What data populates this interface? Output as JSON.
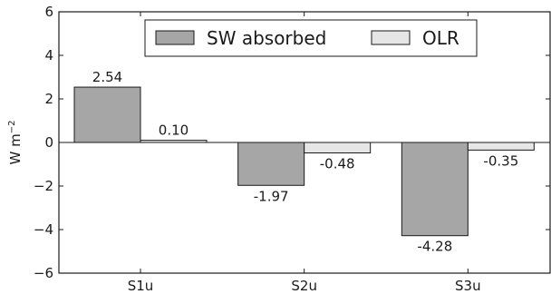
{
  "chart_data": {
    "type": "bar",
    "categories": [
      "S1u",
      "S2u",
      "S3u"
    ],
    "series": [
      {
        "name": "SW absorbed",
        "values": [
          2.54,
          -1.97,
          -4.28
        ],
        "color": "#a6a6a6"
      },
      {
        "name": "OLR",
        "values": [
          0.1,
          -0.48,
          -0.35
        ],
        "color": "#e6e6e6"
      }
    ],
    "data_labels": {
      "SW absorbed": [
        "2.54",
        "-1.97",
        "-4.28"
      ],
      "OLR": [
        "0.10",
        "-0.48",
        "-0.35"
      ]
    },
    "yticks": [
      6,
      4,
      2,
      0,
      -2,
      -4,
      -6
    ],
    "ytick_labels": [
      "6",
      "4",
      "2",
      "0",
      "−2",
      "−4",
      "−6"
    ],
    "ylabel": "W m",
    "ylabel_superscript": "−2",
    "ylim": [
      -6,
      6
    ],
    "legend_position": "top-center",
    "grid": false
  }
}
